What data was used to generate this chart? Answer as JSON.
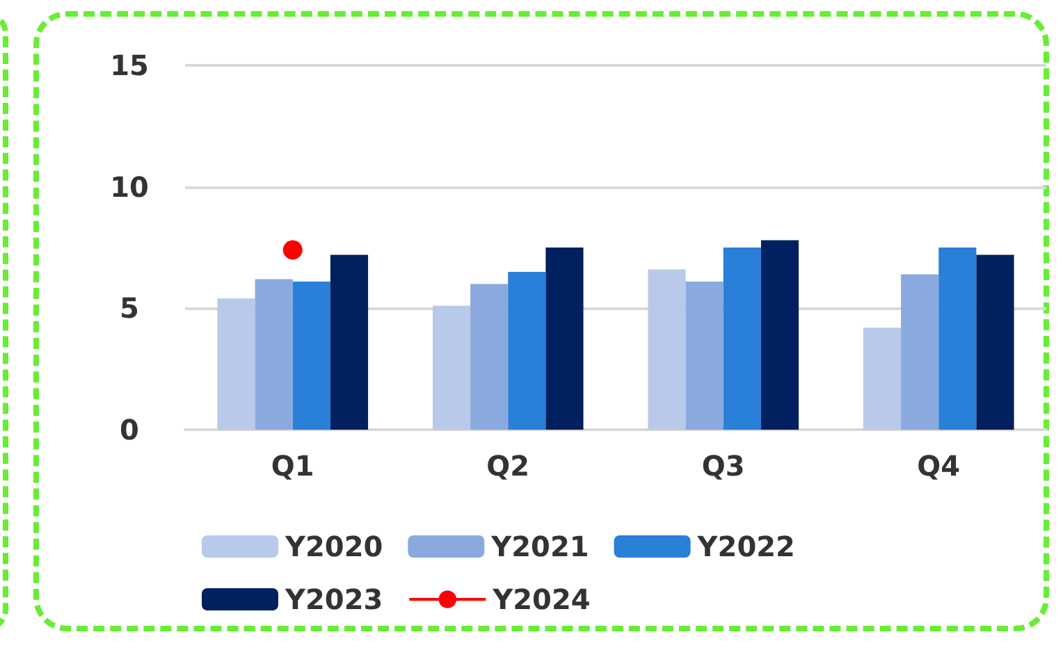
{
  "chart_data": {
    "type": "bar",
    "categories": [
      "Q1",
      "Q2",
      "Q3",
      "Q4"
    ],
    "series": [
      {
        "name": "Y2020",
        "color": "#b9c9ea",
        "values": [
          5.4,
          5.1,
          6.6,
          4.2
        ]
      },
      {
        "name": "Y2021",
        "color": "#8aaadf",
        "values": [
          6.2,
          6.0,
          6.1,
          6.4
        ]
      },
      {
        "name": "Y2022",
        "color": "#2a7fd8",
        "values": [
          6.1,
          6.5,
          7.5,
          7.5
        ]
      },
      {
        "name": "Y2023",
        "color": "#00205f",
        "values": [
          7.2,
          7.5,
          7.8,
          7.2
        ]
      },
      {
        "name": "Y2024",
        "type": "line",
        "color": "#ff0000",
        "marker": "circle",
        "values": [
          7.4,
          null,
          null,
          null
        ]
      }
    ],
    "ylim": [
      0,
      15
    ],
    "yticks": [
      0,
      5,
      10,
      15
    ],
    "grid": "y",
    "legend": "bottom"
  }
}
